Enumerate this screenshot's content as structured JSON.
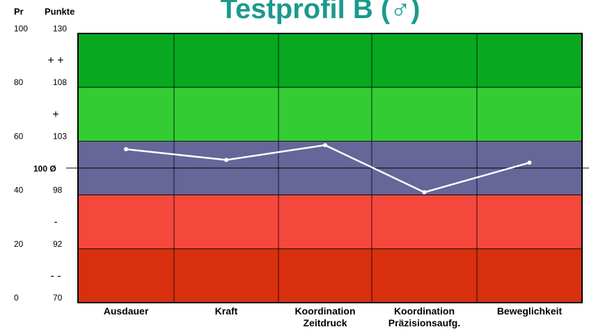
{
  "chart_data": {
    "type": "line",
    "title": "Testprofil B (♂)",
    "y_label": "Pr",
    "y2_label": "Punkte",
    "categories": [
      [
        "Ausdauer"
      ],
      [
        "Kraft"
      ],
      [
        "Koordination",
        "Zeitdruck"
      ],
      [
        "Koordination",
        "Präzisionsaufg."
      ],
      [
        "Beweglichkeit"
      ]
    ],
    "values": [
      57,
      53,
      58.5,
      41,
      52
    ],
    "color": "#ffffff",
    "ylim": [
      0,
      100
    ],
    "yticks": [
      100,
      80,
      60,
      40,
      20,
      0
    ],
    "points_ticks": [
      {
        "pr": 100,
        "points": 130
      },
      {
        "pr": 80,
        "points": 108
      },
      {
        "pr": 60,
        "points": 103
      },
      {
        "pr": 40,
        "points": 98
      },
      {
        "pr": 20,
        "points": 92
      },
      {
        "pr": 0,
        "points": 70
      }
    ],
    "mean_marker": {
      "pr": 50,
      "label": "100 Ø"
    },
    "bands": [
      {
        "from": 80,
        "to": 100,
        "color": "#08a820",
        "label": "+ +"
      },
      {
        "from": 60,
        "to": 80,
        "color": "#33cc33",
        "label": "+"
      },
      {
        "from": 40,
        "to": 60,
        "color": "#666699",
        "label": null
      },
      {
        "from": 20,
        "to": 40,
        "color": "#f5483c",
        "label": "-"
      },
      {
        "from": 0,
        "to": 20,
        "color": "#d8300f",
        "label": "- -"
      }
    ]
  }
}
